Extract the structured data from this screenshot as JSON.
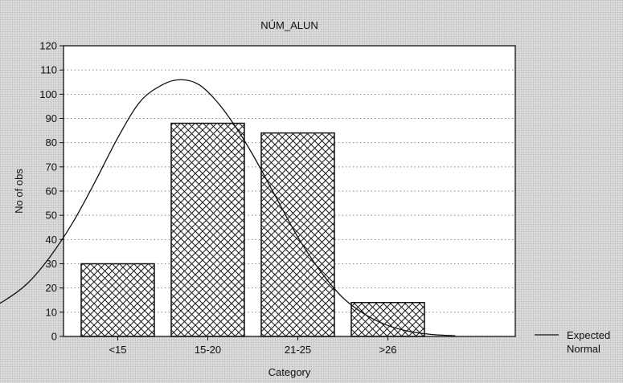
{
  "chart_data": {
    "type": "bar",
    "title": "NÚM_ALUN",
    "xlabel": "Category",
    "ylabel": "No of obs",
    "categories": [
      "<15",
      "15-20",
      "21-25",
      ">26"
    ],
    "values": [
      30,
      88,
      84,
      14
    ],
    "ylim": [
      0,
      120
    ],
    "yticks": [
      0,
      10,
      20,
      30,
      40,
      50,
      60,
      70,
      80,
      90,
      100,
      110,
      120
    ],
    "grid": "horizontal dotted",
    "bar_pattern": "crosshatch",
    "overlay": {
      "type": "line",
      "name": "Expected Normal",
      "peak_value": 106,
      "curve": [
        {
          "x": -1.75,
          "y": 2
        },
        {
          "x": -1.5,
          "y": 3.5
        },
        {
          "x": -1.25,
          "y": 6
        },
        {
          "x": -1.0,
          "y": 10
        },
        {
          "x": -0.75,
          "y": 15
        },
        {
          "x": -0.5,
          "y": 22
        },
        {
          "x": -0.25,
          "y": 33
        },
        {
          "x": 0.0,
          "y": 47
        },
        {
          "x": 0.25,
          "y": 64
        },
        {
          "x": 0.5,
          "y": 82
        },
        {
          "x": 0.75,
          "y": 97
        },
        {
          "x": 1.0,
          "y": 104
        },
        {
          "x": 1.2,
          "y": 106
        },
        {
          "x": 1.4,
          "y": 104
        },
        {
          "x": 1.6,
          "y": 97
        },
        {
          "x": 1.8,
          "y": 87
        },
        {
          "x": 2.0,
          "y": 75
        },
        {
          "x": 2.25,
          "y": 58
        },
        {
          "x": 2.5,
          "y": 41
        },
        {
          "x": 2.75,
          "y": 27
        },
        {
          "x": 3.0,
          "y": 16
        },
        {
          "x": 3.25,
          "y": 9
        },
        {
          "x": 3.5,
          "y": 4.5
        },
        {
          "x": 3.75,
          "y": 2
        },
        {
          "x": 4.0,
          "y": 0.8
        },
        {
          "x": 4.25,
          "y": 0.3
        }
      ]
    },
    "legend": {
      "position": "right-bottom",
      "entries": [
        {
          "line1": "Expected",
          "line2": "Normal"
        }
      ]
    },
    "colors": {
      "background": "#dcdcdc",
      "plot_area": "#ffffff",
      "bar_fill": "#ffffff",
      "bar_hatch": "#222222",
      "line": "#111111",
      "grid": "#888888"
    }
  }
}
